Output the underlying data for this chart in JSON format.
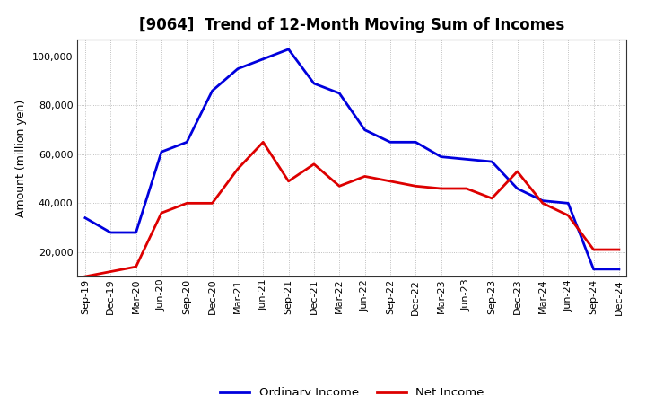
{
  "title": "[9064]  Trend of 12-Month Moving Sum of Incomes",
  "ylabel": "Amount (million yen)",
  "background_color": "#ffffff",
  "grid_color": "#999999",
  "x_labels": [
    "Sep-19",
    "Dec-19",
    "Mar-20",
    "Jun-20",
    "Sep-20",
    "Dec-20",
    "Mar-21",
    "Jun-21",
    "Sep-21",
    "Dec-21",
    "Mar-22",
    "Jun-22",
    "Sep-22",
    "Dec-22",
    "Mar-23",
    "Jun-23",
    "Sep-23",
    "Dec-23",
    "Mar-24",
    "Jun-24",
    "Sep-24",
    "Dec-24"
  ],
  "ordinary_income": [
    34000,
    28000,
    28000,
    61000,
    65000,
    86000,
    95000,
    99000,
    103000,
    89000,
    85000,
    70000,
    65000,
    65000,
    59000,
    58000,
    57000,
    46000,
    41000,
    40000,
    13000,
    13000
  ],
  "net_income": [
    10000,
    12000,
    14000,
    36000,
    40000,
    40000,
    54000,
    65000,
    49000,
    56000,
    47000,
    51000,
    49000,
    47000,
    46000,
    46000,
    42000,
    53000,
    40000,
    35000,
    21000,
    21000
  ],
  "ordinary_color": "#0000dd",
  "net_color": "#dd0000",
  "ylim_min": 10000,
  "ylim_max": 107000,
  "yticks": [
    20000,
    40000,
    60000,
    80000,
    100000
  ],
  "legend_labels": [
    "Ordinary Income",
    "Net Income"
  ]
}
